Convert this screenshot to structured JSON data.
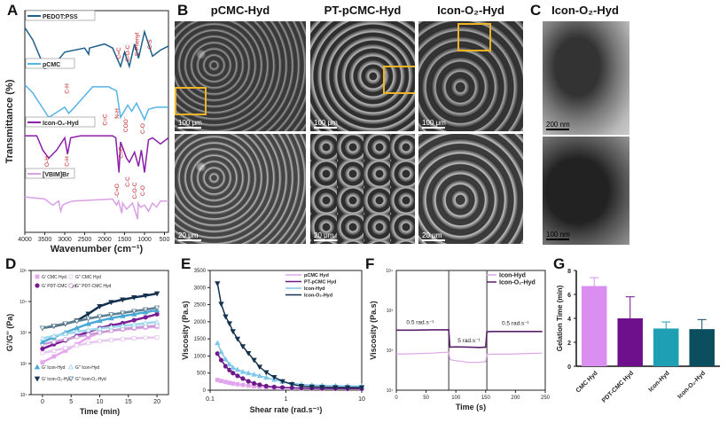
{
  "panels": {
    "A": "A",
    "B": "B",
    "C": "C",
    "D": "D",
    "E": "E",
    "F": "F",
    "G": "G"
  },
  "sem": {
    "titles": [
      "pCMC-Hyd",
      "PT-pCMC-Hyd",
      "Icon-O₂-Hyd"
    ],
    "scale_top": "100 μm",
    "scale_bottom": "20 μm",
    "highlight_color": "#f0b323"
  },
  "tem": {
    "title": "Icon-O₂-Hyd",
    "scale_top": "200 nm",
    "scale_bottom": "100 nm"
  },
  "chart_data": [
    {
      "type": "line",
      "panel": "A",
      "xlabel": "Wavenumber (cm⁻¹)",
      "ylabel": "Transmittance (%)",
      "xlim": [
        4000,
        400
      ],
      "xticks": [
        4000,
        3500,
        3000,
        2500,
        2000,
        1500,
        1000,
        500
      ],
      "series": [
        {
          "name": "PEDOT:PSS",
          "color": "#1f5f8b",
          "x": [
            4000,
            3800,
            3500,
            3300,
            3000,
            2500,
            2400,
            2380,
            2000,
            1800,
            1600,
            1500,
            1380,
            1250,
            1150,
            1000,
            800,
            600,
            400
          ],
          "y": [
            9.6,
            9.0,
            7.6,
            7.7,
            8.4,
            8.6,
            8.3,
            8.6,
            8.8,
            8.6,
            7.7,
            8.4,
            7.7,
            8.8,
            8.1,
            9.4,
            8.2,
            8.5,
            8.7
          ]
        },
        {
          "name": "pCMC",
          "color": "#55b4e6",
          "x": [
            4000,
            3800,
            3400,
            3000,
            2900,
            2800,
            2300,
            1900,
            1700,
            1600,
            1420,
            1320,
            1200,
            1100,
            1000,
            900,
            700,
            400
          ],
          "y": [
            6.8,
            6.4,
            5.2,
            5.7,
            5.4,
            5.6,
            6.7,
            6.7,
            6.5,
            5.2,
            5.8,
            5.5,
            5.9,
            5.5,
            5.1,
            5.6,
            5.7,
            5.7
          ]
        },
        {
          "name": "Icon-O₂-Hyd",
          "color": "#8b1fa9",
          "x": [
            4000,
            3700,
            3550,
            3400,
            3200,
            3000,
            2930,
            2850,
            2600,
            1800,
            1720,
            1640,
            1600,
            1450,
            1380,
            1250,
            1150,
            1080,
            1000,
            900,
            800,
            600,
            400
          ],
          "y": [
            4.3,
            4.3,
            3.6,
            3.2,
            3.6,
            4.2,
            3.4,
            4.2,
            4.3,
            4.3,
            4.2,
            2.5,
            4.0,
            3.2,
            3.0,
            3.5,
            2.8,
            3.6,
            2.5,
            4.1,
            4.2,
            3.9,
            4.2
          ]
        },
        {
          "name": "[VBIM]Br",
          "color": "#d9a0e6",
          "x": [
            4000,
            3500,
            3300,
            3150,
            3100,
            3050,
            2950,
            2800,
            1800,
            1700,
            1650,
            1570,
            1550,
            1450,
            1300,
            1170,
            1160,
            1100,
            1000,
            900,
            800,
            700,
            600,
            400
          ],
          "y": [
            1.3,
            1.2,
            0.9,
            1.1,
            0.6,
            0.9,
            1.0,
            1.1,
            1.2,
            0.9,
            1.1,
            0.5,
            1.0,
            0.7,
            1.0,
            0.2,
            1.0,
            0.8,
            0.9,
            0.6,
            1.0,
            0.8,
            1.1,
            1.1
          ]
        }
      ],
      "annotations": [
        "C=C",
        "C-O-C",
        "S-Phenyl",
        "C-S",
        "C-H",
        "C=C",
        "N-H",
        "COO⁻",
        "C-O",
        "O-H",
        "C-H",
        "-C=O",
        "C=C",
        "C-C",
        "C-O-C",
        "C-O"
      ]
    },
    {
      "type": "scatter",
      "panel": "D",
      "xlabel": "Time (min)",
      "ylabel": "G'/G'' (Pa)",
      "yscale": "log",
      "xlim": [
        -2,
        22
      ],
      "ylim": [
        10,
        100000
      ],
      "xticks": [
        0,
        5,
        10,
        15,
        20
      ],
      "yticks": [
        "10¹",
        "10²",
        "10³",
        "10⁴",
        "10⁵"
      ],
      "x": [
        0,
        2,
        4,
        6,
        8,
        10,
        12,
        14,
        16,
        18,
        20
      ],
      "series": [
        {
          "name": "G' CMC Hyd",
          "color": "#e7a6ef",
          "marker": "square-filled",
          "y": [
            110,
            170,
            260,
            420,
            700,
            1000,
            1150,
            1250,
            1350,
            1450,
            1550
          ]
        },
        {
          "name": "G'' CMC Hyd",
          "color": "#e7c8ef",
          "marker": "square-open",
          "y": [
            220,
            260,
            320,
            380,
            460,
            530,
            580,
            620,
            650,
            680,
            700
          ]
        },
        {
          "name": "G' PDT-CMC Hyd",
          "color": "#7a1a94",
          "marker": "circle-filled",
          "y": [
            300,
            420,
            560,
            780,
            1050,
            1400,
            1700,
            2000,
            2500,
            3100,
            3900
          ]
        },
        {
          "name": "G'' PDT-CMC Hyd",
          "color": "#c79ad6",
          "marker": "circle-open",
          "y": [
            420,
            500,
            600,
            720,
            850,
            1000,
            1150,
            1300,
            1450,
            1550,
            1650
          ]
        },
        {
          "name": "G' Icon-Hyd",
          "color": "#4aa9d6",
          "marker": "triangle-filled",
          "y": [
            500,
            700,
            1000,
            1400,
            1900,
            2400,
            2900,
            3400,
            3900,
            4500,
            5200
          ]
        },
        {
          "name": "G'' Icon-Hyd",
          "color": "#9fd6ee",
          "marker": "triangle-open",
          "y": [
            650,
            780,
            900,
            1050,
            1200,
            1350,
            1500,
            1650,
            1800,
            2000,
            2200
          ]
        },
        {
          "name": "G' Icon-O₂-Hyd",
          "color": "#14324f",
          "marker": "triangle-down-filled",
          "y": [
            1400,
            1600,
            1900,
            2400,
            4000,
            7000,
            9500,
            11500,
            13500,
            15500,
            18000
          ]
        },
        {
          "name": "G'' Icon-O₂-Hyd",
          "color": "#5e7f92",
          "marker": "triangle-down-open",
          "y": [
            1400,
            1650,
            1950,
            2300,
            2800,
            3300,
            3800,
            4300,
            4900,
            5500,
            6300
          ]
        }
      ],
      "legend": "top-left / bottom-left"
    },
    {
      "type": "line",
      "panel": "E",
      "xlabel": "Shear rate (rad.s⁻¹)",
      "ylabel": "Viscosity (Pa.s)",
      "xscale": "log",
      "xlim": [
        0.1,
        10
      ],
      "ylim": [
        0,
        3500
      ],
      "xticks": [
        "0.1",
        "1",
        "10"
      ],
      "yticks": [
        0,
        500,
        1000,
        1500,
        2000,
        2500,
        3000,
        3500
      ],
      "x": [
        0.125,
        0.14,
        0.16,
        0.18,
        0.2,
        0.23,
        0.27,
        0.32,
        0.38,
        0.45,
        0.55,
        0.7,
        0.9,
        1.2,
        1.6,
        2.2,
        3,
        4.5,
        6.5,
        10
      ],
      "series": [
        {
          "name": "pCMC Hyd",
          "color": "#e2a6ee",
          "y": [
            300,
            270,
            240,
            215,
            195,
            175,
            155,
            135,
            115,
            100,
            85,
            72,
            62,
            55,
            50,
            48,
            46,
            45,
            44,
            44
          ]
        },
        {
          "name": "PT-pCMC Hyd",
          "color": "#6d1a88",
          "y": [
            1070,
            880,
            700,
            590,
            500,
            420,
            340,
            260,
            200,
            160,
            120,
            95,
            80,
            70,
            60,
            55,
            50,
            48,
            46,
            45
          ]
        },
        {
          "name": "Icon-Hyd",
          "color": "#7fc6ea",
          "y": [
            1380,
            1120,
            900,
            760,
            660,
            600,
            540,
            500,
            460,
            420,
            370,
            310,
            250,
            200,
            170,
            150,
            140,
            130,
            125,
            120
          ]
        },
        {
          "name": "Icon-O₂-Hyd",
          "color": "#14324f",
          "y": [
            3120,
            2520,
            2150,
            1950,
            1720,
            1500,
            1280,
            1080,
            880,
            680,
            520,
            380,
            260,
            170,
            120,
            100,
            90,
            85,
            80,
            80
          ]
        }
      ],
      "legend": "top-right"
    },
    {
      "type": "line",
      "panel": "F",
      "xlabel": "Time (s)",
      "ylabel": "Viscosity (Pa.s)",
      "yscale": "log",
      "xlim": [
        0,
        250
      ],
      "ylim": [
        10,
        10000
      ],
      "xticks": [
        0,
        50,
        100,
        150,
        200,
        250
      ],
      "yticks": [
        "10¹",
        "10²",
        "10³",
        "10⁴"
      ],
      "x": [
        0,
        30,
        60,
        88,
        90,
        100,
        120,
        140,
        150,
        152,
        160,
        190,
        220,
        245
      ],
      "series": [
        {
          "name": "Icon-Hyd",
          "color": "#dba8e6",
          "y": [
            80,
            82,
            85,
            90,
            58,
            55,
            50,
            50,
            52,
            78,
            80,
            80,
            83,
            85
          ]
        },
        {
          "name": "Icon-O₂-Hyd",
          "color": "#5a1f6a",
          "y": [
            320,
            320,
            325,
            325,
            120,
            122,
            120,
            118,
            120,
            290,
            295,
            295,
            295,
            295
          ]
        }
      ],
      "vlines": [
        88,
        152
      ],
      "annotations": [
        "0.5 rad.s⁻¹",
        "5 rad.s⁻¹",
        "0.5 rad.s⁻¹"
      ],
      "legend": "top-right"
    },
    {
      "type": "bar",
      "panel": "G",
      "ylabel": "Gelation Time (min)",
      "ylim": [
        0,
        8
      ],
      "yticks": [
        0,
        2,
        4,
        6,
        8
      ],
      "categories": [
        "CMC Hyd",
        "PDT-CMC Hyd",
        "Icon-Hyd",
        "Icon-O₂-Hyd"
      ],
      "values": [
        6.7,
        4.0,
        3.15,
        3.1
      ],
      "errors": [
        0.7,
        1.8,
        0.55,
        0.8
      ],
      "colors": [
        "#d98ef0",
        "#6e0f8c",
        "#1f9fb4",
        "#0b4f5e"
      ]
    }
  ]
}
